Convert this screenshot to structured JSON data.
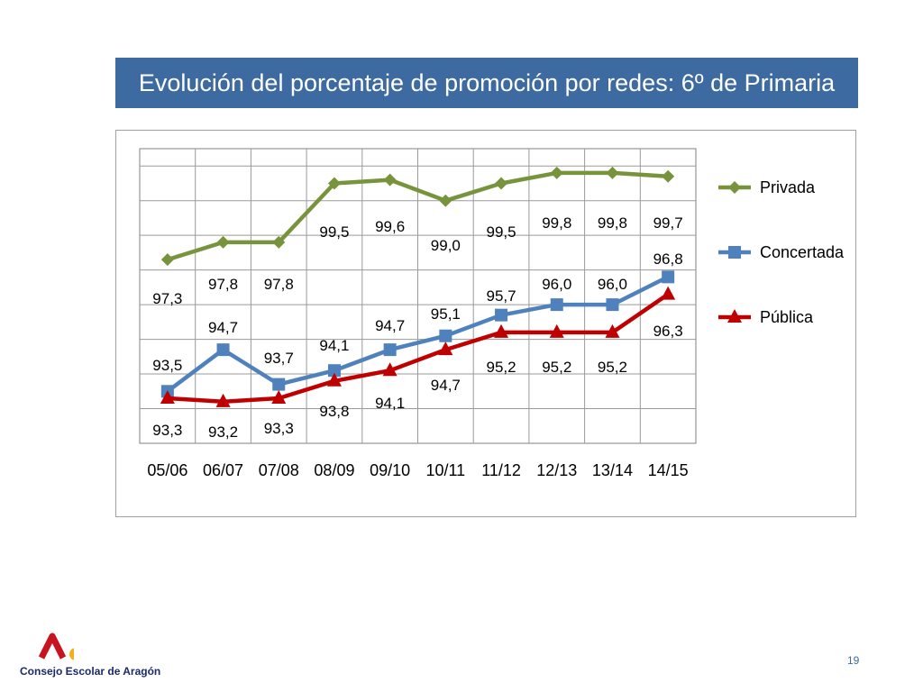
{
  "slide": {
    "title": "Evolución del porcentaje de promoción por redes:  6º de Primaria",
    "page_number": "19",
    "logo_text": "Consejo Escolar de Aragón"
  },
  "chart_data": {
    "type": "line",
    "title": "",
    "xlabel": "",
    "ylabel": "",
    "ylim": [
      92.0,
      100.5
    ],
    "grid": true,
    "legend_position": "right",
    "categories": [
      "05/06",
      "06/07",
      "07/08",
      "08/09",
      "09/10",
      "10/11",
      "11/12",
      "12/13",
      "13/14",
      "14/15"
    ],
    "series": [
      {
        "name": "Privada",
        "color": "#77933c",
        "marker": "diamond",
        "values": [
          97.3,
          97.8,
          97.8,
          99.5,
          99.6,
          99.0,
          99.5,
          99.8,
          99.8,
          99.7
        ],
        "labels": [
          "97,3",
          "97,8",
          "97,8",
          "99,5",
          "99,6",
          "99,0",
          "99,5",
          "99,8",
          "99,8",
          "99,7"
        ]
      },
      {
        "name": "Concertada",
        "color": "#4f81bd",
        "marker": "square",
        "values": [
          93.5,
          94.7,
          93.7,
          94.1,
          94.7,
          95.1,
          95.7,
          96.0,
          96.0,
          96.8
        ],
        "labels": [
          "93,5",
          "94,7",
          "93,7",
          "94,1",
          "94,7",
          "95,1",
          "95,7",
          "96,0",
          "96,0",
          "96,8"
        ]
      },
      {
        "name": "Pública",
        "color": "#c00000",
        "marker": "triangle",
        "values": [
          93.3,
          93.2,
          93.3,
          93.8,
          94.1,
          94.7,
          95.2,
          95.2,
          95.2,
          96.3
        ],
        "labels": [
          "93,3",
          "93,2",
          "93,3",
          "93,8",
          "94,1",
          "94,7",
          "95,2",
          "95,2",
          "95,2",
          "96,3"
        ]
      }
    ]
  }
}
